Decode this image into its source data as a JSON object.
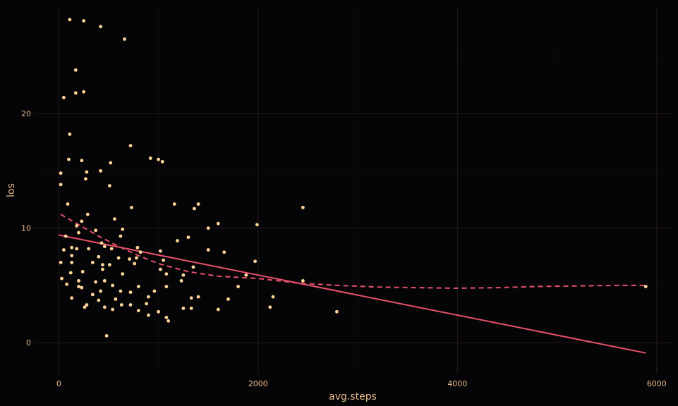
{
  "chart_data": {
    "type": "scatter",
    "xlabel": "avg.steps",
    "ylabel": "los",
    "xlim": [
      -250,
      6150
    ],
    "ylim": [
      -2.7,
      29.3
    ],
    "x_ticks": [
      0,
      2000,
      4000,
      6000
    ],
    "y_ticks": [
      0,
      10,
      20
    ],
    "grid": true,
    "colors": {
      "background": "#050507",
      "points": "#ffd49a",
      "line": "#e8516a",
      "text": "#e8b989"
    },
    "series": [
      {
        "type": "scatter",
        "points": [
          [
            110,
            28.2
          ],
          [
            250,
            28.1
          ],
          [
            420,
            27.6
          ],
          [
            660,
            26.5
          ],
          [
            170,
            23.8
          ],
          [
            170,
            21.8
          ],
          [
            250,
            21.9
          ],
          [
            50,
            21.4
          ],
          [
            110,
            18.2
          ],
          [
            720,
            17.2
          ],
          [
            920,
            16.1
          ],
          [
            1000,
            16.0
          ],
          [
            1040,
            15.8
          ],
          [
            100,
            16.0
          ],
          [
            230,
            15.9
          ],
          [
            520,
            15.7
          ],
          [
            20,
            14.8
          ],
          [
            280,
            14.9
          ],
          [
            420,
            15.0
          ],
          [
            270,
            14.3
          ],
          [
            20,
            13.8
          ],
          [
            510,
            13.7
          ],
          [
            90,
            12.1
          ],
          [
            730,
            11.8
          ],
          [
            1160,
            12.1
          ],
          [
            1400,
            12.1
          ],
          [
            1360,
            11.7
          ],
          [
            2450,
            11.8
          ],
          [
            290,
            11.2
          ],
          [
            560,
            10.8
          ],
          [
            230,
            10.6
          ],
          [
            180,
            10.2
          ],
          [
            1600,
            10.4
          ],
          [
            1990,
            10.3
          ],
          [
            1500,
            10.0
          ],
          [
            640,
            9.9
          ],
          [
            370,
            9.8
          ],
          [
            200,
            9.6
          ],
          [
            70,
            9.3
          ],
          [
            620,
            9.3
          ],
          [
            1300,
            9.2
          ],
          [
            1190,
            8.9
          ],
          [
            430,
            8.7
          ],
          [
            460,
            8.4
          ],
          [
            130,
            8.3
          ],
          [
            790,
            8.3
          ],
          [
            50,
            8.1
          ],
          [
            180,
            8.2
          ],
          [
            300,
            8.2
          ],
          [
            530,
            8.2
          ],
          [
            1500,
            8.1
          ],
          [
            1020,
            8.0
          ],
          [
            1660,
            7.9
          ],
          [
            820,
            7.9
          ],
          [
            130,
            7.6
          ],
          [
            400,
            7.5
          ],
          [
            600,
            7.4
          ],
          [
            710,
            7.3
          ],
          [
            780,
            7.4
          ],
          [
            1050,
            7.2
          ],
          [
            1970,
            7.1
          ],
          [
            20,
            7.0
          ],
          [
            130,
            7.0
          ],
          [
            340,
            7.0
          ],
          [
            440,
            6.8
          ],
          [
            510,
            6.8
          ],
          [
            760,
            6.9
          ],
          [
            1350,
            6.6
          ],
          [
            440,
            6.4
          ],
          [
            1020,
            6.4
          ],
          [
            120,
            6.1
          ],
          [
            240,
            6.2
          ],
          [
            640,
            6.0
          ],
          [
            1080,
            6.0
          ],
          [
            1250,
            5.9
          ],
          [
            1880,
            5.9
          ],
          [
            30,
            5.6
          ],
          [
            200,
            5.4
          ],
          [
            370,
            5.3
          ],
          [
            460,
            5.4
          ],
          [
            1230,
            5.4
          ],
          [
            2450,
            5.4
          ],
          [
            80,
            5.1
          ],
          [
            200,
            4.9
          ],
          [
            540,
            5.0
          ],
          [
            800,
            4.9
          ],
          [
            1080,
            4.9
          ],
          [
            1800,
            4.9
          ],
          [
            230,
            4.8
          ],
          [
            420,
            4.5
          ],
          [
            620,
            4.5
          ],
          [
            960,
            4.5
          ],
          [
            720,
            4.4
          ],
          [
            900,
            4.0
          ],
          [
            1400,
            4.0
          ],
          [
            2150,
            4.0
          ],
          [
            340,
            4.2
          ],
          [
            130,
            3.9
          ],
          [
            570,
            3.8
          ],
          [
            1700,
            3.8
          ],
          [
            400,
            3.7
          ],
          [
            1330,
            3.9
          ],
          [
            880,
            3.4
          ],
          [
            630,
            3.3
          ],
          [
            720,
            3.3
          ],
          [
            280,
            3.3
          ],
          [
            260,
            3.1
          ],
          [
            460,
            3.1
          ],
          [
            1250,
            3.0
          ],
          [
            1330,
            3.0
          ],
          [
            1600,
            2.9
          ],
          [
            800,
            2.8
          ],
          [
            1000,
            2.7
          ],
          [
            2790,
            2.7
          ],
          [
            540,
            2.9
          ],
          [
            2120,
            3.1
          ],
          [
            900,
            2.4
          ],
          [
            1080,
            2.2
          ],
          [
            1100,
            1.9
          ],
          [
            480,
            0.6
          ],
          [
            5890,
            4.9
          ]
        ]
      },
      {
        "type": "line",
        "style": "solid",
        "points": [
          [
            0,
            9.4
          ],
          [
            5890,
            -0.9
          ]
        ]
      },
      {
        "type": "line",
        "style": "dashed",
        "points": [
          [
            20,
            11.2
          ],
          [
            200,
            10.3
          ],
          [
            400,
            9.3
          ],
          [
            600,
            8.4
          ],
          [
            800,
            7.6
          ],
          [
            1000,
            6.9
          ],
          [
            1300,
            6.2
          ],
          [
            1600,
            5.8
          ],
          [
            2000,
            5.6
          ],
          [
            2400,
            5.2
          ],
          [
            2800,
            5.0
          ],
          [
            3200,
            4.85
          ],
          [
            3600,
            4.8
          ],
          [
            4000,
            4.75
          ],
          [
            4400,
            4.8
          ],
          [
            4800,
            4.9
          ],
          [
            5200,
            4.95
          ],
          [
            5600,
            5.0
          ],
          [
            5890,
            5.0
          ]
        ]
      }
    ]
  }
}
